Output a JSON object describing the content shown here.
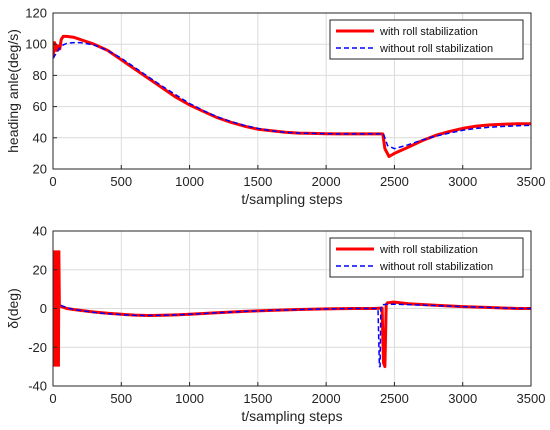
{
  "chart_data": [
    {
      "type": "line",
      "title": "",
      "xlabel": "t/sampling steps",
      "ylabel": "heading anle(deg/s)",
      "xlim": [
        0,
        3500
      ],
      "ylim": [
        20,
        120
      ],
      "xticks": [
        0,
        500,
        1000,
        1500,
        2000,
        2500,
        3000,
        3500
      ],
      "yticks": [
        20,
        40,
        60,
        80,
        100,
        120
      ],
      "grid": true,
      "legend_position": "top-right",
      "series": [
        {
          "name": "with roll stabilization",
          "color": "#ff0000",
          "style": "solid",
          "x": [
            0,
            12,
            25,
            35,
            50,
            60,
            75,
            100,
            150,
            200,
            300,
            400,
            500,
            600,
            700,
            800,
            900,
            1000,
            1100,
            1200,
            1300,
            1400,
            1500,
            1600,
            1700,
            1800,
            1900,
            2000,
            2100,
            2200,
            2300,
            2400,
            2415,
            2430,
            2460,
            2500,
            2600,
            2700,
            2800,
            2900,
            3000,
            3100,
            3200,
            3300,
            3400,
            3500
          ],
          "values": [
            91,
            101,
            96,
            99,
            97,
            103,
            105,
            105,
            104.5,
            103,
            100,
            96,
            90,
            84,
            78,
            72,
            66,
            61,
            57,
            53,
            50,
            47.5,
            45.5,
            44.5,
            43.5,
            43,
            42.8,
            42.6,
            42.5,
            42.5,
            42.5,
            42.5,
            42.5,
            33,
            28,
            30,
            34,
            38,
            41.5,
            44,
            46,
            47.5,
            48.3,
            48.7,
            49,
            49
          ]
        },
        {
          "name": "without roll stabilization",
          "color": "#0000ff",
          "style": "dashed",
          "x": [
            0,
            30,
            60,
            100,
            150,
            200,
            300,
            400,
            500,
            600,
            700,
            800,
            900,
            1000,
            1100,
            1200,
            1300,
            1400,
            1500,
            1600,
            1700,
            1800,
            1900,
            2000,
            2100,
            2200,
            2300,
            2400,
            2420,
            2450,
            2500,
            2600,
            2700,
            2800,
            2900,
            3000,
            3100,
            3200,
            3300,
            3400,
            3500
          ],
          "values": [
            91,
            95,
            99,
            100.5,
            101,
            101,
            99.5,
            96,
            91,
            85,
            79,
            73,
            67.5,
            62,
            57.5,
            53.5,
            50.5,
            48,
            46,
            44.5,
            43.5,
            43,
            42.8,
            42.6,
            42.5,
            42.5,
            42.5,
            42.5,
            42.5,
            35,
            33,
            35.5,
            38.5,
            41,
            43,
            44.8,
            46,
            46.8,
            47.3,
            47.7,
            48
          ]
        }
      ]
    },
    {
      "type": "line",
      "title": "",
      "xlabel": "t/sampling steps",
      "ylabel": "δ(deg)",
      "xlim": [
        0,
        3500
      ],
      "ylim": [
        -40,
        40
      ],
      "xticks": [
        0,
        500,
        1000,
        1500,
        2000,
        2500,
        3000,
        3500
      ],
      "yticks": [
        -40,
        -20,
        0,
        20,
        40
      ],
      "grid": true,
      "legend_position": "top-right",
      "series": [
        {
          "name": "with roll stabilization",
          "color": "#ff0000",
          "style": "solid",
          "x": [
            0,
            20,
            40,
            60,
            80,
            100,
            150,
            200,
            300,
            400,
            500,
            600,
            700,
            800,
            900,
            1000,
            1200,
            1400,
            1600,
            1800,
            2000,
            2200,
            2350,
            2410,
            2420,
            2430,
            2440,
            2450,
            2460,
            2480,
            2500,
            2600,
            2800,
            3000,
            3200,
            3400,
            3500
          ],
          "values": [
            0,
            2,
            2,
            1,
            0.5,
            0,
            -0.5,
            -1,
            -1.8,
            -2.5,
            -3,
            -3.4,
            -3.6,
            -3.5,
            -3.3,
            -3,
            -2.2,
            -1.5,
            -1,
            -0.5,
            -0.2,
            0,
            0,
            0.2,
            -28,
            -30,
            2,
            3,
            3,
            3.2,
            3.3,
            2.5,
            1.7,
            1,
            0.5,
            0,
            0
          ]
        },
        {
          "name": "without roll stabilization",
          "color": "#0000ff",
          "style": "dashed",
          "x": [
            0,
            10,
            20,
            40,
            60,
            100,
            150,
            200,
            300,
            400,
            500,
            600,
            700,
            800,
            900,
            1000,
            1200,
            1400,
            1600,
            1800,
            2000,
            2200,
            2380,
            2390,
            2395,
            2400,
            2410,
            2420,
            2450,
            2500,
            2600,
            2800,
            3000,
            3200,
            3400,
            3500
          ],
          "values": [
            0,
            4,
            3,
            2,
            1.5,
            0.5,
            -0.5,
            -1,
            -2,
            -2.7,
            -3.2,
            -3.5,
            -3.6,
            -3.5,
            -3.3,
            -3,
            -2.2,
            -1.5,
            -1,
            -0.5,
            -0.2,
            0,
            0,
            -30,
            -30,
            0,
            2,
            2,
            2.2,
            2.2,
            2,
            1.5,
            1,
            0.5,
            0,
            0
          ]
        }
      ]
    }
  ],
  "red_spike_start": {
    "x": [
      0,
      3,
      6,
      9,
      12,
      15,
      18,
      21,
      24,
      27,
      30,
      33,
      36,
      39,
      42,
      45,
      48
    ],
    "values": [
      0,
      30,
      -30,
      30,
      -30,
      30,
      -30,
      30,
      -30,
      30,
      -30,
      30,
      -30,
      30,
      -30,
      30,
      2
    ]
  }
}
